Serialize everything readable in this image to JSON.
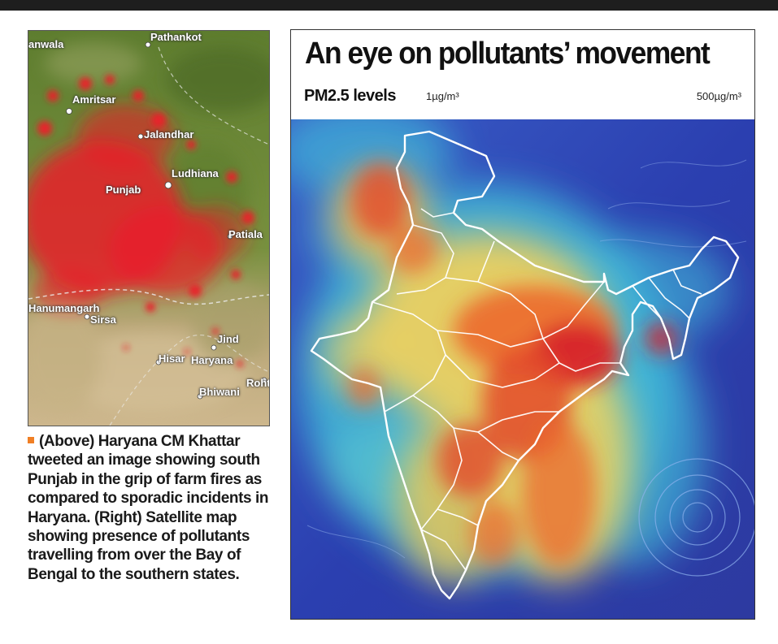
{
  "fire_map": {
    "place_labels": [
      {
        "name": "Pathankot"
      },
      {
        "name": "anwala"
      },
      {
        "name": "Amritsar"
      },
      {
        "name": "Jalandhar"
      },
      {
        "name": "Ludhiana"
      },
      {
        "name": "Punjab"
      },
      {
        "name": "Patiala"
      },
      {
        "name": "Hanumangarh"
      },
      {
        "name": "Sirsa"
      },
      {
        "name": "Jind"
      },
      {
        "name": "Hisar"
      },
      {
        "name": "Haryana"
      },
      {
        "name": "Rohtak"
      },
      {
        "name": "Bhiwani"
      }
    ],
    "colors": {
      "fire": "#e8202a",
      "land": "#6f8a3c"
    }
  },
  "caption": {
    "text": "(Above) Haryana CM Khattar tweeted an image showing south Punjab in the grip of farm fires as compared to sporadic incidents in Haryana. (Right) Satellite map showing presence of pollutants travelling from over the Bay of Bengal to the southern states.",
    "bullet_color": "#f07f25"
  },
  "pollutant_map": {
    "title": "An eye on pollutants’ movement",
    "legend": {
      "label": "PM2.5 levels",
      "min": "1µg/m³",
      "max": "500µg/m³"
    },
    "colors": {
      "low": "#2b3fb0",
      "mid": "#3fb8d8",
      "high": "#f6d35a",
      "peak": "#d6202a",
      "border": "#ffffff"
    }
  }
}
